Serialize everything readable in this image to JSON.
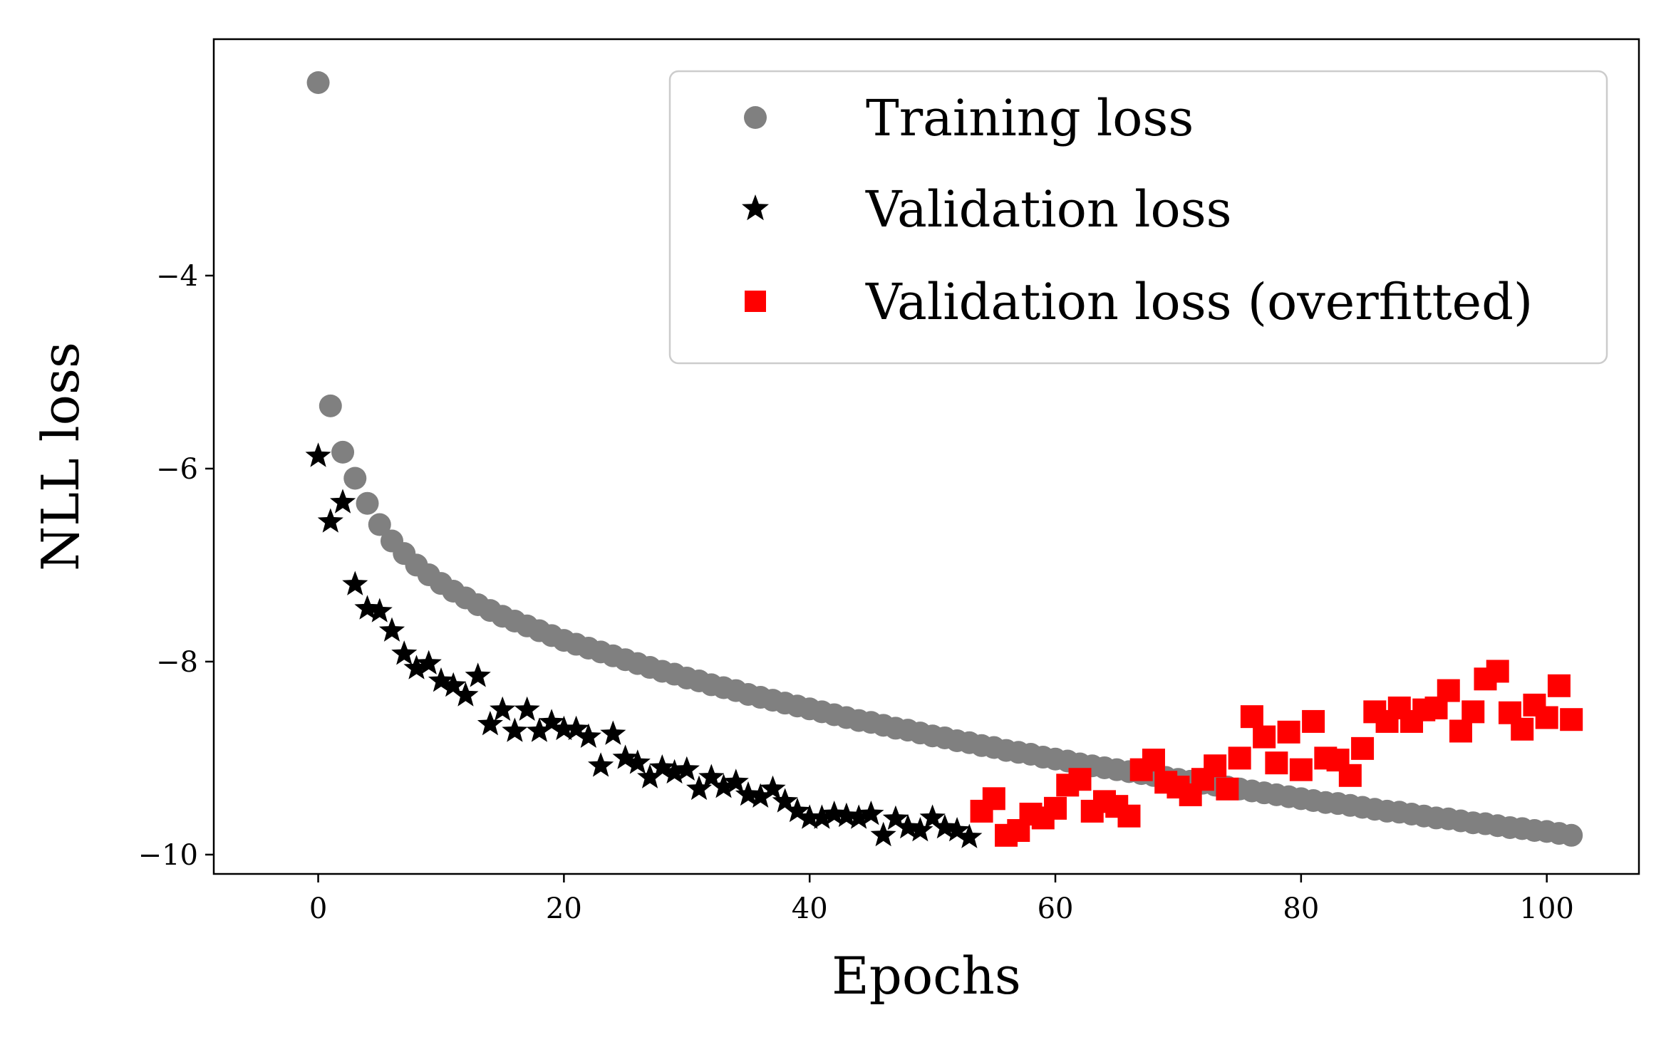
{
  "chart_data": {
    "type": "scatter",
    "title": "",
    "xlabel": "Epochs",
    "ylabel": "NLL loss",
    "xlim": [
      -8.5,
      107.5
    ],
    "ylim": [
      -10.2,
      -1.55
    ],
    "xticks": [
      0,
      20,
      40,
      60,
      80,
      100
    ],
    "yticks": [
      -10,
      -8,
      -6,
      -4
    ],
    "ytick_labels": [
      "−10",
      "−8",
      "−6",
      "−4"
    ],
    "grid": false,
    "legend_position": "top-right",
    "series": [
      {
        "name": "Training loss",
        "marker": "circle",
        "color": "#808080",
        "x": [
          0,
          1,
          2,
          3,
          4,
          5,
          6,
          7,
          8,
          9,
          10,
          11,
          12,
          13,
          14,
          15,
          16,
          17,
          18,
          19,
          20,
          21,
          22,
          23,
          24,
          25,
          26,
          27,
          28,
          29,
          30,
          31,
          32,
          33,
          34,
          35,
          36,
          37,
          38,
          39,
          40,
          41,
          42,
          43,
          44,
          45,
          46,
          47,
          48,
          49,
          50,
          51,
          52,
          53,
          54,
          55,
          56,
          57,
          58,
          59,
          60,
          61,
          62,
          63,
          64,
          65,
          66,
          67,
          68,
          69,
          70,
          71,
          72,
          73,
          74,
          75,
          76,
          77,
          78,
          79,
          80,
          81,
          82,
          83,
          84,
          85,
          86,
          87,
          88,
          89,
          90,
          91,
          92,
          93,
          94,
          95,
          96,
          97,
          98,
          99,
          100,
          101,
          102
        ],
        "y": [
          -2.0,
          -5.35,
          -5.83,
          -6.1,
          -6.36,
          -6.58,
          -6.75,
          -6.88,
          -7.0,
          -7.1,
          -7.19,
          -7.27,
          -7.34,
          -7.41,
          -7.47,
          -7.53,
          -7.58,
          -7.63,
          -7.68,
          -7.73,
          -7.78,
          -7.82,
          -7.86,
          -7.9,
          -7.94,
          -7.98,
          -8.02,
          -8.06,
          -8.1,
          -8.13,
          -8.17,
          -8.2,
          -8.24,
          -8.27,
          -8.3,
          -8.34,
          -8.37,
          -8.4,
          -8.43,
          -8.46,
          -8.49,
          -8.52,
          -8.55,
          -8.58,
          -8.61,
          -8.63,
          -8.66,
          -8.69,
          -8.71,
          -8.74,
          -8.77,
          -8.79,
          -8.82,
          -8.84,
          -8.87,
          -8.89,
          -8.92,
          -8.94,
          -8.96,
          -8.99,
          -9.01,
          -9.03,
          -9.06,
          -9.08,
          -9.1,
          -9.12,
          -9.14,
          -9.16,
          -9.18,
          -9.2,
          -9.22,
          -9.24,
          -9.26,
          -9.28,
          -9.3,
          -9.32,
          -9.34,
          -9.36,
          -9.38,
          -9.4,
          -9.42,
          -9.44,
          -9.46,
          -9.47,
          -9.49,
          -9.51,
          -9.53,
          -9.55,
          -9.56,
          -9.58,
          -9.6,
          -9.62,
          -9.63,
          -9.65,
          -9.67,
          -9.68,
          -9.7,
          -9.72,
          -9.73,
          -9.75,
          -9.76,
          -9.78,
          -9.8
        ]
      },
      {
        "name": "Validation loss",
        "marker": "star",
        "color": "#000000",
        "x": [
          0,
          1,
          2,
          3,
          4,
          5,
          6,
          7,
          8,
          9,
          10,
          11,
          12,
          13,
          14,
          15,
          16,
          17,
          18,
          19,
          20,
          21,
          22,
          23,
          24,
          25,
          26,
          27,
          28,
          29,
          30,
          31,
          32,
          33,
          34,
          35,
          36,
          37,
          38,
          39,
          40,
          41,
          42,
          43,
          44,
          45,
          46,
          47,
          48,
          49,
          50,
          51,
          52,
          53
        ],
        "y": [
          -5.87,
          -6.55,
          -6.35,
          -7.2,
          -7.45,
          -7.48,
          -7.68,
          -7.92,
          -8.07,
          -8.02,
          -8.2,
          -8.25,
          -8.35,
          -8.15,
          -8.65,
          -8.5,
          -8.72,
          -8.5,
          -8.72,
          -8.63,
          -8.7,
          -8.7,
          -8.78,
          -9.08,
          -8.75,
          -9.0,
          -9.05,
          -9.2,
          -9.1,
          -9.15,
          -9.12,
          -9.32,
          -9.2,
          -9.3,
          -9.25,
          -9.38,
          -9.4,
          -9.32,
          -9.45,
          -9.55,
          -9.62,
          -9.62,
          -9.58,
          -9.6,
          -9.62,
          -9.58,
          -9.8,
          -9.63,
          -9.72,
          -9.75,
          -9.62,
          -9.72,
          -9.75,
          -9.82
        ]
      },
      {
        "name": "Validation loss (overfitted)",
        "marker": "square",
        "color": "#ff0000",
        "x": [
          54,
          55,
          56,
          57,
          58,
          59,
          60,
          61,
          62,
          63,
          64,
          65,
          66,
          67,
          68,
          69,
          70,
          71,
          72,
          73,
          74,
          75,
          76,
          77,
          78,
          79,
          80,
          81,
          82,
          83,
          84,
          85,
          86,
          87,
          88,
          89,
          90,
          91,
          92,
          93,
          94,
          95,
          96,
          97,
          98,
          99,
          100,
          101,
          102
        ],
        "y": [
          -9.55,
          -9.42,
          -9.8,
          -9.75,
          -9.58,
          -9.62,
          -9.52,
          -9.28,
          -9.22,
          -9.55,
          -9.45,
          -9.5,
          -9.6,
          -9.12,
          -9.02,
          -9.25,
          -9.3,
          -9.38,
          -9.22,
          -9.08,
          -9.32,
          -9.0,
          -8.57,
          -8.78,
          -9.05,
          -8.73,
          -9.12,
          -8.62,
          -9.0,
          -9.02,
          -9.18,
          -8.9,
          -8.52,
          -8.62,
          -8.48,
          -8.62,
          -8.5,
          -8.48,
          -8.3,
          -8.72,
          -8.52,
          -8.18,
          -8.1,
          -8.53,
          -8.7,
          -8.45,
          -8.58,
          -8.25,
          -8.6
        ]
      }
    ]
  }
}
